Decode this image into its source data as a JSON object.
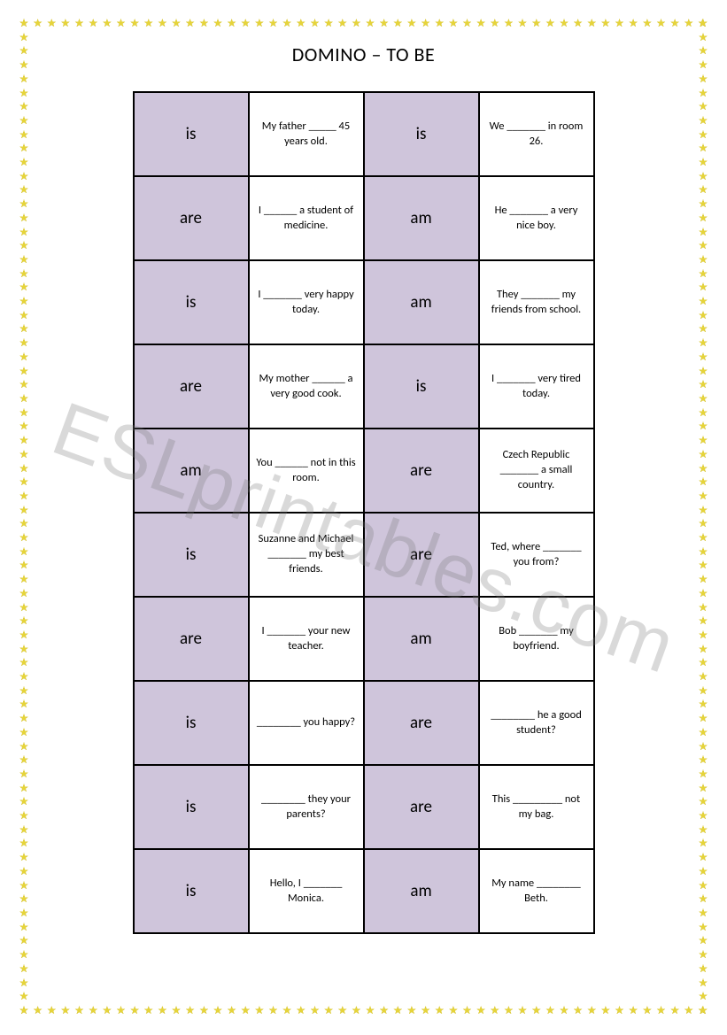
{
  "title": "DOMINO – TO BE",
  "watermark": "ESLprintables.com",
  "colors": {
    "word_cell_bg": "#cfc5db",
    "sentence_cell_bg": "#ffffff",
    "border": "#000000",
    "star": "#d6c22e",
    "watermark": "rgba(120,120,120,0.28)"
  },
  "border_stars": {
    "horizontal_count": 50,
    "vertical_count": 72
  },
  "rows": [
    {
      "w1": "is",
      "s1": "My father _____ 45 years old.",
      "w2": "is",
      "s2": "We _______ in room 26."
    },
    {
      "w1": "are",
      "s1": "I ______ a student of medicine.",
      "w2": "am",
      "s2": "He _______ a very nice boy."
    },
    {
      "w1": "is",
      "s1": "I _______ very happy today.",
      "w2": "am",
      "s2": "They _______ my friends from school."
    },
    {
      "w1": "are",
      "s1": "My mother ______ a very good cook.",
      "w2": "is",
      "s2": "I _______ very tired today."
    },
    {
      "w1": "am",
      "s1": "You ______ not in this room.",
      "w2": "are",
      "s2": "Czech Republic _______ a small country."
    },
    {
      "w1": "is",
      "s1": "Suzanne and Michael _______ my best friends.",
      "w2": "are",
      "s2": "Ted, where _______ you from?"
    },
    {
      "w1": "are",
      "s1": "I _______ your new teacher.",
      "w2": "am",
      "s2": "Bob _______ my boyfriend."
    },
    {
      "w1": "is",
      "s1": "________ you happy?",
      "w2": "are",
      "s2": "________ he a good student?"
    },
    {
      "w1": "is",
      "s1": "________ they your parents?",
      "w2": "are",
      "s2": "This _________ not my bag."
    },
    {
      "w1": "is",
      "s1": "Hello, I _______ Monica.",
      "w2": "am",
      "s2": "My name ________ Beth."
    }
  ]
}
